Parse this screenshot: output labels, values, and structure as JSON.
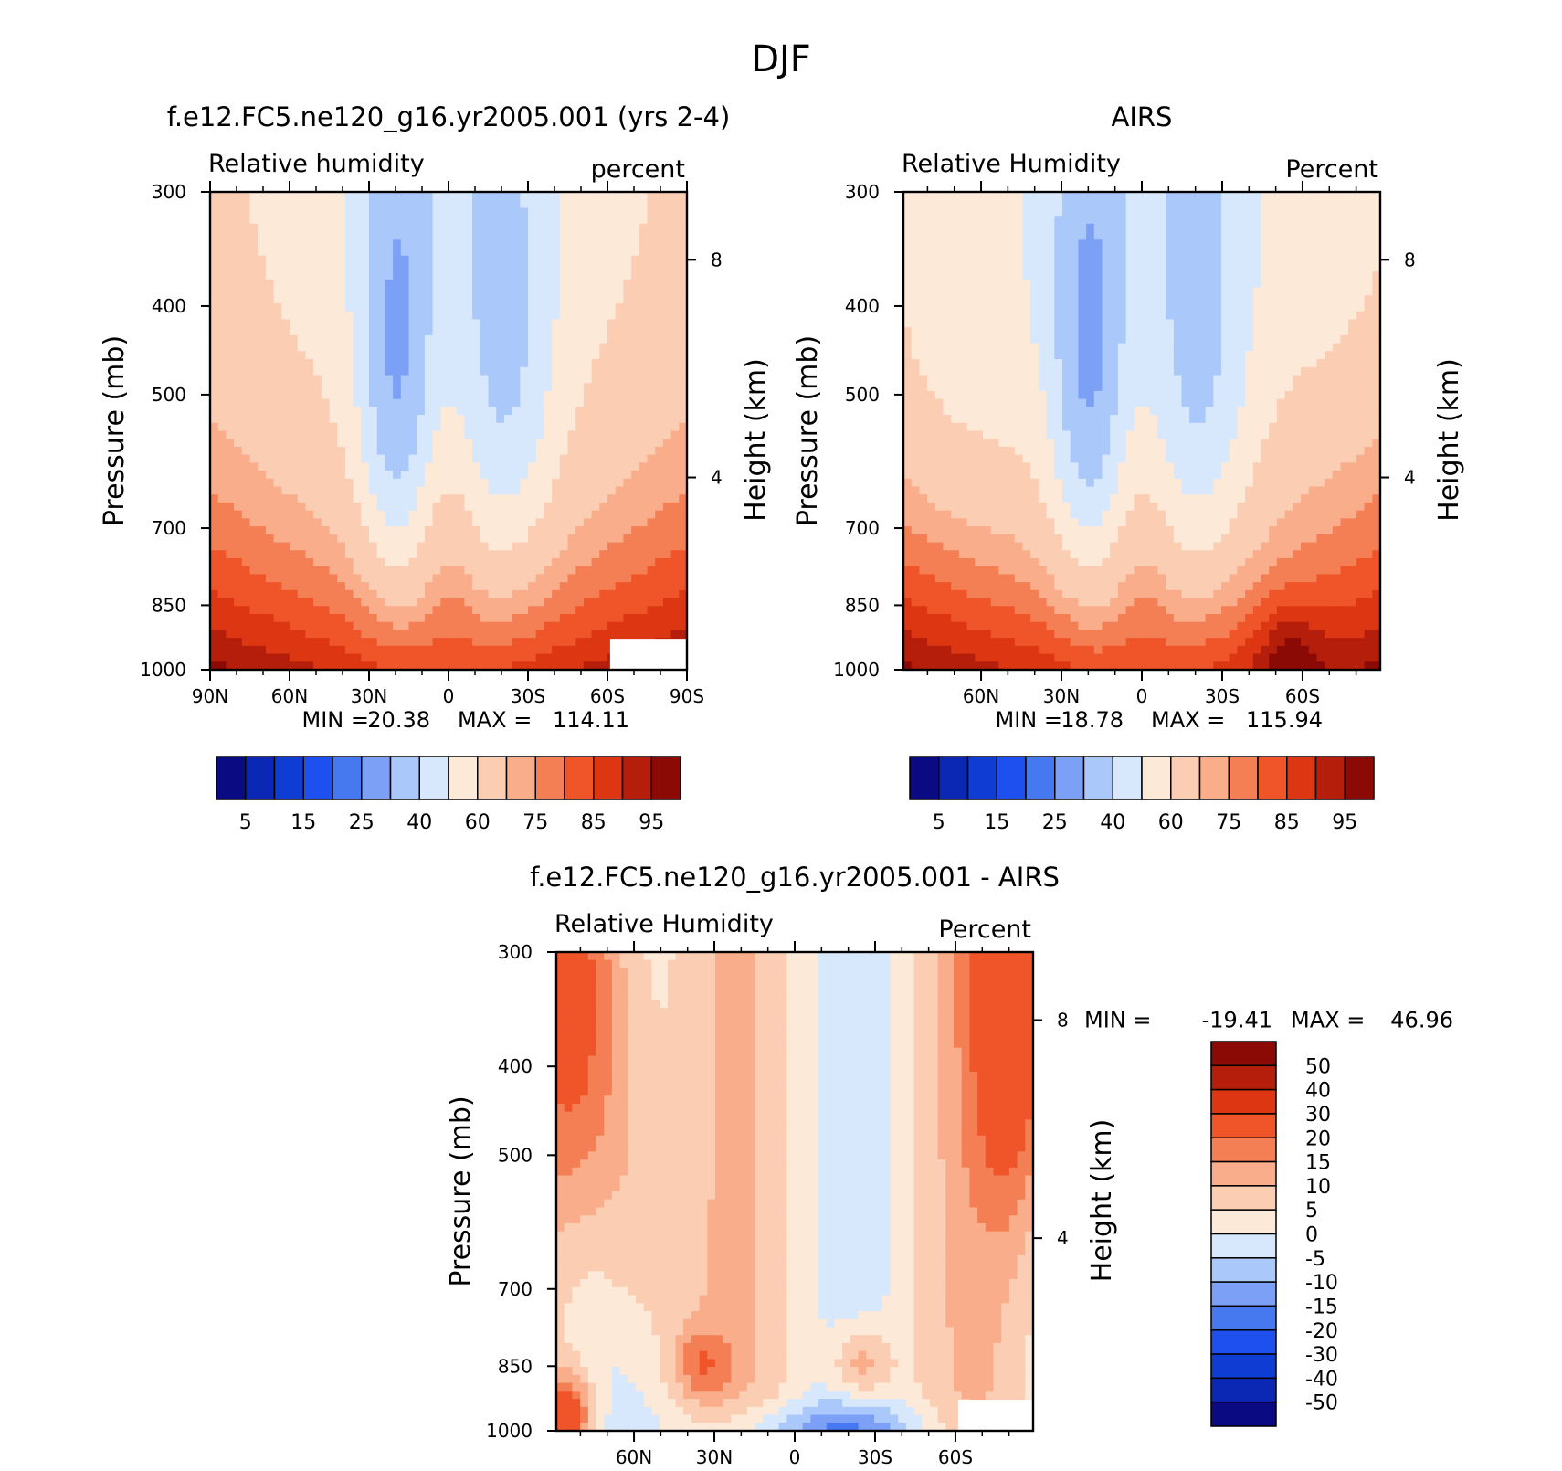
{
  "figure": {
    "title": "DJF"
  },
  "chart_data": [
    {
      "type": "heatmap",
      "id": "model",
      "title": "f.e12.FC5.ne120_g16.yr2005.001 (yrs 2-4)",
      "variable": "Relative humidity",
      "units": "percent",
      "xlabel": "",
      "ylabel": "Pressure (mb)",
      "y2label": "Height (km)",
      "x_ticks": [
        {
          "lat": 90,
          "label": "90N"
        },
        {
          "lat": 60,
          "label": "60N"
        },
        {
          "lat": 30,
          "label": "30N"
        },
        {
          "lat": 0,
          "label": "0"
        },
        {
          "lat": -30,
          "label": "30S"
        },
        {
          "lat": -60,
          "label": "60S"
        },
        {
          "lat": -90,
          "label": "90S"
        }
      ],
      "xlim": [
        90,
        -90
      ],
      "y_ticks": [
        300,
        400,
        500,
        700,
        850,
        1000
      ],
      "ylim": [
        300,
        1000
      ],
      "y_scale": "log",
      "y2_ticks": [
        {
          "p": 356,
          "label": "8"
        },
        {
          "p": 616,
          "label": "4"
        }
      ],
      "min_label": "MIN =",
      "min_value": "20.38",
      "max_label": "MAX =",
      "max_value": "114.11",
      "colorbar": {
        "orientation": "horizontal",
        "colors": [
          "#0a0a82",
          "#0a28b4",
          "#0f3cd2",
          "#1e50f0",
          "#4678f0",
          "#7ca0f5",
          "#aac8fa",
          "#d7e8fc",
          "#fde9d8",
          "#fbcdb3",
          "#f9ad8a",
          "#f47f55",
          "#f0552a",
          "#dc3712",
          "#b41e0a",
          "#8c0a05"
        ],
        "labels": [
          {
            "after": 0,
            "text": "5"
          },
          {
            "after": 2,
            "text": "15"
          },
          {
            "after": 4,
            "text": "25"
          },
          {
            "after": 6,
            "text": "40"
          },
          {
            "after": 8,
            "text": "60"
          },
          {
            "after": 10,
            "text": "75"
          },
          {
            "after": 12,
            "text": "85"
          },
          {
            "after": 14,
            "text": "95"
          }
        ]
      },
      "grid": false
    },
    {
      "type": "heatmap",
      "id": "obs",
      "title": "AIRS",
      "variable": "Relative Humidity",
      "units": "Percent",
      "xlabel": "",
      "ylabel": "Pressure (mb)",
      "y2label": "Height (km)",
      "x_ticks": [
        {
          "lat": 60,
          "label": "60N"
        },
        {
          "lat": 30,
          "label": "30N"
        },
        {
          "lat": 0,
          "label": "0"
        },
        {
          "lat": -30,
          "label": "30S"
        },
        {
          "lat": -60,
          "label": "60S"
        }
      ],
      "xlim": [
        89,
        -89
      ],
      "y_ticks": [
        300,
        400,
        500,
        700,
        850,
        1000
      ],
      "ylim": [
        300,
        1000
      ],
      "y_scale": "log",
      "y2_ticks": [
        {
          "p": 356,
          "label": "8"
        },
        {
          "p": 616,
          "label": "4"
        }
      ],
      "min_label": "MIN =",
      "min_value": "18.78",
      "max_label": "MAX =",
      "max_value": "115.94",
      "colorbar": {
        "orientation": "horizontal",
        "colors": [
          "#0a0a82",
          "#0a28b4",
          "#0f3cd2",
          "#1e50f0",
          "#4678f0",
          "#7ca0f5",
          "#aac8fa",
          "#d7e8fc",
          "#fde9d8",
          "#fbcdb3",
          "#f9ad8a",
          "#f47f55",
          "#f0552a",
          "#dc3712",
          "#b41e0a",
          "#8c0a05"
        ],
        "labels": [
          {
            "after": 0,
            "text": "5"
          },
          {
            "after": 2,
            "text": "15"
          },
          {
            "after": 4,
            "text": "25"
          },
          {
            "after": 6,
            "text": "40"
          },
          {
            "after": 8,
            "text": "60"
          },
          {
            "after": 10,
            "text": "75"
          },
          {
            "after": 12,
            "text": "85"
          },
          {
            "after": 14,
            "text": "95"
          }
        ]
      },
      "grid": false
    },
    {
      "type": "heatmap",
      "id": "diff",
      "title": "f.e12.FC5.ne120_g16.yr2005.001 - AIRS",
      "variable": "Relative Humidity",
      "units": "Percent",
      "xlabel": "",
      "ylabel": "Pressure (mb)",
      "y2label": "Height (km)",
      "x_ticks": [
        {
          "lat": 60,
          "label": "60N"
        },
        {
          "lat": 30,
          "label": "30N"
        },
        {
          "lat": 0,
          "label": "0"
        },
        {
          "lat": -30,
          "label": "30S"
        },
        {
          "lat": -60,
          "label": "60S"
        }
      ],
      "xlim": [
        89,
        -89
      ],
      "y_ticks": [
        300,
        400,
        500,
        700,
        850,
        1000
      ],
      "ylim": [
        300,
        1000
      ],
      "y_scale": "log",
      "y2_ticks": [
        {
          "p": 356,
          "label": "8"
        },
        {
          "p": 616,
          "label": "4"
        }
      ],
      "min_label": "MIN =",
      "min_value": "-19.41",
      "max_label": "MAX =",
      "max_value": "46.96",
      "colorbar": {
        "orientation": "vertical",
        "colors": [
          "#8c0a05",
          "#b41e0a",
          "#dc3712",
          "#f0552a",
          "#f47f55",
          "#f9ad8a",
          "#fbcdb3",
          "#fde9d8",
          "#d7e8fc",
          "#aac8fa",
          "#7ca0f5",
          "#4678f0",
          "#1e50f0",
          "#0f3cd2",
          "#0a28b4",
          "#0a0a82"
        ],
        "labels": [
          "50",
          "40",
          "30",
          "20",
          "15",
          "10",
          "5",
          "0",
          "-5",
          "-10",
          "-15",
          "-20",
          "-30",
          "-40",
          "-50"
        ]
      },
      "grid": false
    }
  ]
}
